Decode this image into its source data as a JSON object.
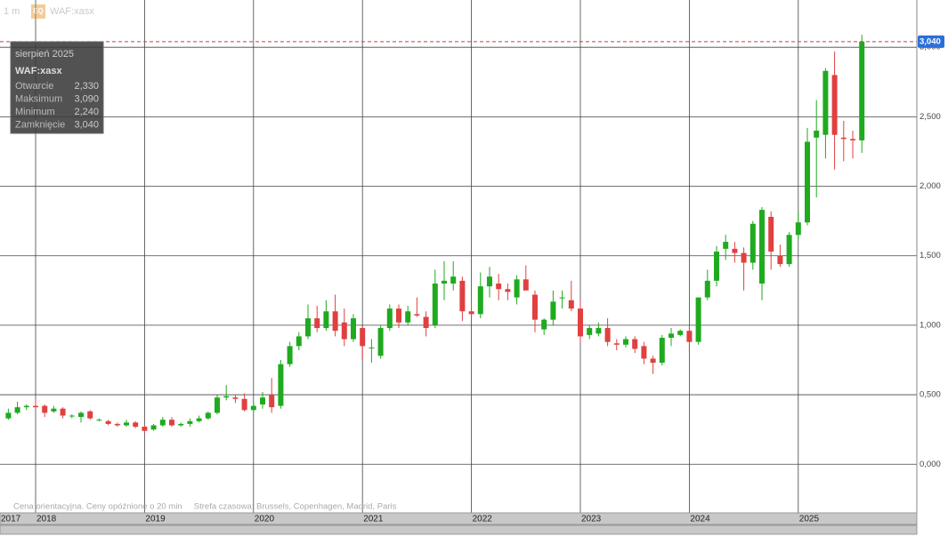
{
  "header": {
    "interval": "1 m",
    "badge": "EQ",
    "symbol": "WAF:xasx"
  },
  "chart_data": {
    "type": "candlestick",
    "categories": [
      "2017-10",
      "2017-11",
      "2017-12",
      "2018-01",
      "2018-02",
      "2018-03",
      "2018-04",
      "2018-05",
      "2018-06",
      "2018-07",
      "2018-08",
      "2018-09",
      "2018-10",
      "2018-11",
      "2018-12",
      "2019-01",
      "2019-02",
      "2019-03",
      "2019-04",
      "2019-05",
      "2019-06",
      "2019-07",
      "2019-08",
      "2019-09",
      "2019-10",
      "2019-11",
      "2019-12",
      "2020-01",
      "2020-02",
      "2020-03",
      "2020-04",
      "2020-05",
      "2020-06",
      "2020-07",
      "2020-08",
      "2020-09",
      "2020-10",
      "2020-11",
      "2020-12",
      "2021-01",
      "2021-02",
      "2021-03",
      "2021-04",
      "2021-05",
      "2021-06",
      "2021-07",
      "2021-08",
      "2021-09",
      "2021-10",
      "2021-11",
      "2021-12",
      "2022-01",
      "2022-02",
      "2022-03",
      "2022-04",
      "2022-05",
      "2022-06",
      "2022-07",
      "2022-08",
      "2022-09",
      "2022-10",
      "2022-11",
      "2022-12",
      "2023-01",
      "2023-02",
      "2023-03",
      "2023-04",
      "2023-05",
      "2023-06",
      "2023-07",
      "2023-08",
      "2023-09",
      "2023-10",
      "2023-11",
      "2023-12",
      "2024-01",
      "2024-02",
      "2024-03",
      "2024-04",
      "2024-05",
      "2024-06",
      "2024-07",
      "2024-08",
      "2024-09",
      "2024-10",
      "2024-11",
      "2024-12",
      "2025-01",
      "2025-02",
      "2025-03",
      "2025-04",
      "2025-05",
      "2025-06",
      "2025-07",
      "2025-08"
    ],
    "open": [
      0.33,
      0.37,
      0.41,
      0.42,
      0.42,
      0.38,
      0.4,
      0.35,
      0.34,
      0.38,
      0.32,
      0.31,
      0.29,
      0.28,
      0.3,
      0.27,
      0.25,
      0.28,
      0.32,
      0.28,
      0.29,
      0.31,
      0.33,
      0.37,
      0.48,
      0.48,
      0.47,
      0.39,
      0.43,
      0.5,
      0.42,
      0.72,
      0.85,
      0.92,
      1.05,
      0.98,
      1.1,
      1.02,
      0.9,
      0.98,
      0.84,
      0.78,
      0.98,
      1.12,
      1.02,
      1.08,
      1.06,
      1.0,
      1.3,
      1.3,
      1.32,
      1.1,
      1.08,
      1.28,
      1.3,
      1.26,
      1.2,
      1.33,
      1.22,
      0.97,
      1.04,
      1.2,
      1.18,
      1.12,
      0.93,
      0.94,
      0.98,
      0.87,
      0.86,
      0.9,
      0.85,
      0.76,
      0.73,
      0.91,
      0.93,
      0.96,
      0.88,
      1.2,
      1.32,
      1.55,
      1.55,
      1.52,
      1.45,
      1.3,
      1.78,
      1.5,
      1.44,
      1.65,
      1.74,
      2.35,
      2.37,
      2.8,
      2.35,
      2.34,
      2.33
    ],
    "high": [
      0.4,
      0.45,
      0.43,
      0.47,
      0.43,
      0.42,
      0.41,
      0.36,
      0.38,
      0.39,
      0.33,
      0.32,
      0.3,
      0.32,
      0.31,
      0.28,
      0.29,
      0.34,
      0.34,
      0.3,
      0.33,
      0.35,
      0.38,
      0.5,
      0.57,
      0.5,
      0.51,
      0.45,
      0.52,
      0.62,
      0.75,
      0.88,
      0.95,
      1.15,
      1.14,
      1.18,
      1.22,
      1.12,
      1.08,
      1.0,
      0.9,
      1.0,
      1.15,
      1.15,
      1.14,
      1.2,
      1.1,
      1.4,
      1.46,
      1.46,
      1.35,
      1.2,
      1.38,
      1.42,
      1.37,
      1.3,
      1.36,
      1.43,
      1.25,
      1.05,
      1.25,
      1.25,
      1.32,
      1.18,
      1.0,
      1.02,
      1.05,
      0.9,
      0.92,
      0.92,
      0.88,
      0.78,
      0.93,
      0.98,
      0.97,
      1.0,
      1.2,
      1.4,
      1.57,
      1.65,
      1.6,
      1.56,
      1.75,
      1.85,
      1.82,
      1.58,
      1.67,
      1.82,
      2.42,
      2.62,
      2.85,
      2.97,
      2.47,
      2.4,
      3.09
    ],
    "low": [
      0.32,
      0.36,
      0.39,
      0.4,
      0.34,
      0.37,
      0.33,
      0.33,
      0.3,
      0.32,
      0.31,
      0.28,
      0.27,
      0.27,
      0.26,
      0.22,
      0.24,
      0.27,
      0.27,
      0.27,
      0.27,
      0.3,
      0.32,
      0.36,
      0.46,
      0.44,
      0.38,
      0.37,
      0.4,
      0.37,
      0.4,
      0.7,
      0.82,
      0.9,
      0.95,
      0.96,
      0.92,
      0.85,
      0.88,
      0.75,
      0.73,
      0.76,
      0.96,
      0.98,
      1.0,
      1.06,
      0.92,
      0.98,
      1.18,
      1.25,
      1.03,
      1.05,
      1.05,
      1.2,
      1.18,
      1.18,
      1.15,
      1.28,
      0.95,
      0.93,
      1.0,
      1.12,
      1.1,
      0.88,
      0.9,
      0.92,
      0.85,
      0.82,
      0.84,
      0.8,
      0.72,
      0.65,
      0.71,
      0.85,
      0.92,
      0.8,
      0.86,
      1.18,
      1.28,
      1.47,
      1.45,
      1.25,
      1.4,
      1.18,
      1.4,
      1.42,
      1.42,
      1.62,
      1.72,
      1.92,
      2.2,
      2.12,
      2.18,
      2.2,
      2.24
    ],
    "close": [
      0.37,
      0.41,
      0.42,
      0.41,
      0.37,
      0.4,
      0.35,
      0.35,
      0.37,
      0.33,
      0.32,
      0.29,
      0.28,
      0.3,
      0.27,
      0.24,
      0.28,
      0.32,
      0.28,
      0.29,
      0.31,
      0.33,
      0.37,
      0.48,
      0.49,
      0.47,
      0.39,
      0.42,
      0.48,
      0.41,
      0.72,
      0.85,
      0.92,
      1.05,
      0.98,
      1.1,
      0.96,
      0.9,
      1.05,
      0.85,
      0.84,
      0.98,
      1.12,
      1.02,
      1.1,
      1.07,
      0.98,
      1.3,
      1.32,
      1.35,
      1.1,
      1.08,
      1.28,
      1.35,
      1.26,
      1.24,
      1.33,
      1.25,
      1.04,
      1.04,
      1.17,
      1.2,
      1.12,
      0.92,
      0.98,
      0.98,
      0.88,
      0.86,
      0.9,
      0.83,
      0.76,
      0.73,
      0.91,
      0.94,
      0.96,
      0.88,
      1.2,
      1.32,
      1.53,
      1.6,
      1.52,
      1.45,
      1.73,
      1.83,
      1.53,
      1.44,
      1.65,
      1.74,
      2.32,
      2.4,
      2.83,
      2.37,
      2.34,
      2.33,
      3.04
    ],
    "up_color": "#1faa1f",
    "down_color": "#e04040",
    "ylim": [
      -0.35,
      3.34
    ],
    "yticks": [
      {
        "value": 0,
        "label": "0,000"
      },
      {
        "value": 0.5,
        "label": "0,500"
      },
      {
        "value": 1,
        "label": "1,000"
      },
      {
        "value": 1.5,
        "label": "1,500"
      },
      {
        "value": 2,
        "label": "2,000"
      },
      {
        "value": 2.5,
        "label": "2,500"
      },
      {
        "value": 3,
        "label": "3,000"
      }
    ],
    "xticks": [
      {
        "value": "2017-01",
        "label": "2017"
      },
      {
        "value": "2018-01",
        "label": "2018"
      },
      {
        "value": "2019-01",
        "label": "2019"
      },
      {
        "value": "2020-01",
        "label": "2020"
      },
      {
        "value": "2021-01",
        "label": "2021"
      },
      {
        "value": "2022-01",
        "label": "2022"
      },
      {
        "value": "2023-01",
        "label": "2023"
      },
      {
        "value": "2024-01",
        "label": "2024"
      },
      {
        "value": "2025-01",
        "label": "2025"
      }
    ],
    "grid": true,
    "last_label": "3,040",
    "note": "Cena orientacyjna. Ceny opóźnione o 20 min     Strefa czasowa: Brussels, Copenhagen, Madrid, Paris"
  },
  "tooltip": {
    "title": "sierpień 2025",
    "symbol": "WAF:xasx",
    "rows": [
      {
        "label": "Otwarcie",
        "value": "2,330"
      },
      {
        "label": "Maksimum",
        "value": "3,090"
      },
      {
        "label": "Minimum",
        "value": "2,240"
      },
      {
        "label": "Zamknięcie",
        "value": "3,040"
      }
    ]
  }
}
